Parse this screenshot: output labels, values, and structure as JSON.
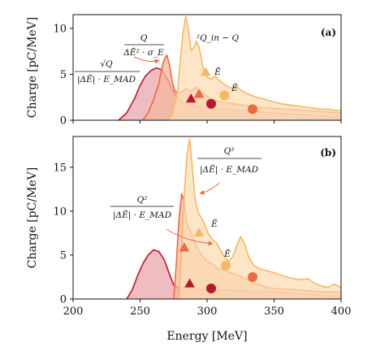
{
  "chart_data": [
    {
      "panel": "(a)",
      "type": "area",
      "ylabel": "Charge [pC/MeV]",
      "xlim": [
        200,
        400
      ],
      "ylim": [
        0,
        11.5
      ],
      "xticks": [
        200,
        250,
        300,
        350,
        400
      ],
      "yticks": [
        0,
        5,
        10
      ],
      "grid": false,
      "series": [
        {
          "color": "#b8172b",
          "fill": "#e9a5ae",
          "x": [
            234,
            240,
            246,
            250,
            254,
            258,
            262,
            266,
            270,
            274,
            278,
            282,
            286,
            290,
            295,
            300,
            305,
            310,
            320,
            330,
            340,
            350,
            360,
            370,
            380,
            390,
            400
          ],
          "y": [
            0,
            0.8,
            2.4,
            3.8,
            4.8,
            5.4,
            5.7,
            5.5,
            4.6,
            3.4,
            2.4,
            1.9,
            1.6,
            1.5,
            1.4,
            1.3,
            1.25,
            1.2,
            1.1,
            1.0,
            0.9,
            0.8,
            0.7,
            0.6,
            0.5,
            0.4,
            0.3
          ]
        },
        {
          "color": "#ea6b45",
          "fill": "#f5b79c",
          "x": [
            252,
            256,
            260,
            264,
            266,
            268,
            270,
            272,
            274,
            276,
            278,
            281,
            284,
            288,
            292,
            296,
            300,
            305,
            310,
            315,
            320,
            330,
            340,
            350,
            360,
            370,
            380,
            390,
            400
          ],
          "y": [
            0,
            0.8,
            2.2,
            4.0,
            5.5,
            6.6,
            7.1,
            6.0,
            4.2,
            3.2,
            3.0,
            3.1,
            3.4,
            3.2,
            3.6,
            3.0,
            2.6,
            2.2,
            2.0,
            1.9,
            1.8,
            1.6,
            1.4,
            1.3,
            1.2,
            1.1,
            1.0,
            0.9,
            0.8
          ]
        },
        {
          "color": "#f6b766",
          "fill": "#fcdeb6",
          "x": [
            270,
            274,
            278,
            280,
            282,
            284,
            286,
            288,
            290,
            292,
            294,
            296,
            298,
            300,
            303,
            306,
            310,
            314,
            318,
            322,
            326,
            330,
            335,
            340,
            345,
            350,
            355,
            360,
            365,
            370,
            375,
            380,
            385,
            390,
            395,
            400
          ],
          "y": [
            0,
            0.6,
            3.2,
            6.5,
            9.5,
            11.3,
            10.0,
            7.6,
            7.9,
            8.6,
            8.0,
            6.5,
            5.1,
            4.7,
            4.5,
            4.8,
            4.2,
            3.8,
            3.5,
            3.7,
            3.2,
            2.9,
            2.6,
            2.4,
            2.2,
            2.0,
            1.8,
            1.7,
            1.6,
            1.5,
            1.4,
            1.3,
            1.2,
            1.2,
            1.1,
            1.0
          ]
        }
      ],
      "markers": [
        {
          "shape": "triangle",
          "x": 288,
          "y": 2.3,
          "color": "#b8172b"
        },
        {
          "shape": "circle",
          "x": 303,
          "y": 1.8,
          "color": "#b8172b"
        },
        {
          "shape": "triangle",
          "x": 294,
          "y": 2.8,
          "color": "#ea6b45"
        },
        {
          "shape": "circle",
          "x": 334,
          "y": 1.2,
          "color": "#ea6b45"
        },
        {
          "shape": "triangle",
          "x": 299,
          "y": 5.2,
          "color": "#f6b766"
        },
        {
          "shape": "circle",
          "x": 313,
          "y": 2.7,
          "color": "#f6b766"
        }
      ],
      "annotations": [
        {
          "text": "Q",
          "x": 225,
          "y": 10.3
        },
        {
          "text": "ΔĒ² · σ_E",
          "x": 225,
          "y": 8.7
        },
        {
          "text": "√Q",
          "x": 207,
          "y": 6.1
        },
        {
          "text": "|ΔẼ| · E_MAD",
          "x": 207,
          "y": 4.5
        },
        {
          "text": "²Q_in − Q",
          "x": 330,
          "y": 9.0
        },
        {
          "text": "Ē",
          "x": 307,
          "y": 5.6
        },
        {
          "text": "Ẽ",
          "x": 322,
          "y": 3.3
        }
      ],
      "tag": "(a)"
    },
    {
      "panel": "(b)",
      "type": "area",
      "ylabel": "Charge [pC/MeV]",
      "xlabel": "Energy [MeV]",
      "xlim": [
        200,
        400
      ],
      "ylim": [
        0,
        18.5
      ],
      "xticks": [
        200,
        250,
        300,
        350,
        400
      ],
      "yticks": [
        0,
        5,
        10,
        15
      ],
      "grid": false,
      "series": [
        {
          "color": "#b8172b",
          "fill": "#e9a5ae",
          "x": [
            240,
            244,
            248,
            252,
            256,
            260,
            264,
            268,
            272,
            275,
            278,
            282,
            286,
            290,
            295,
            300,
            310,
            320,
            330,
            340,
            350,
            360,
            370,
            380,
            390,
            400
          ],
          "y": [
            0,
            1.0,
            2.6,
            4.0,
            5.0,
            5.6,
            5.4,
            4.5,
            2.8,
            1.6,
            1.3,
            1.2,
            1.2,
            1.1,
            1.1,
            1.1,
            1.0,
            1.0,
            0.9,
            0.9,
            0.8,
            0.7,
            0.6,
            0.5,
            0.4,
            0.3
          ]
        },
        {
          "color": "#ea6b45",
          "fill": "#f5b79c",
          "x": [
            275,
            277,
            279,
            281,
            283,
            285,
            288,
            292,
            296,
            300,
            304,
            308,
            312,
            316,
            320,
            325,
            330,
            335,
            340,
            345,
            350,
            360,
            370,
            380,
            390,
            400
          ],
          "y": [
            0,
            4.0,
            9.0,
            12.0,
            11.0,
            8.5,
            7.6,
            6.0,
            5.0,
            4.3,
            4.0,
            3.5,
            3.3,
            3.1,
            2.9,
            2.6,
            2.2,
            1.8,
            1.6,
            1.3,
            1.2,
            1.1,
            1.0,
            0.9,
            0.8,
            0.8
          ]
        },
        {
          "color": "#f6b766",
          "fill": "#fcdeb6",
          "x": [
            279,
            281,
            283,
            285,
            287,
            289,
            291,
            293,
            295,
            298,
            301,
            304,
            307,
            310,
            313,
            316,
            319,
            322,
            325,
            328,
            331,
            335,
            340,
            345,
            350,
            355,
            360,
            365,
            370,
            375,
            380,
            385,
            390,
            395,
            400
          ],
          "y": [
            0,
            6.0,
            12.0,
            16.5,
            18.2,
            15.0,
            11.5,
            10.0,
            9.4,
            8.6,
            7.4,
            6.8,
            6.4,
            5.6,
            4.8,
            4.3,
            4.8,
            6.0,
            7.1,
            6.3,
            4.8,
            3.8,
            3.4,
            3.2,
            3.0,
            2.7,
            2.5,
            2.3,
            2.2,
            2.3,
            1.8,
            1.5,
            1.3,
            1.7,
            1.3
          ]
        }
      ],
      "markers": [
        {
          "shape": "triangle",
          "x": 287,
          "y": 1.7,
          "color": "#b8172b"
        },
        {
          "shape": "circle",
          "x": 303,
          "y": 1.2,
          "color": "#b8172b"
        },
        {
          "shape": "triangle",
          "x": 283,
          "y": 5.8,
          "color": "#ea6b45"
        },
        {
          "shape": "circle",
          "x": 334,
          "y": 2.5,
          "color": "#ea6b45"
        },
        {
          "shape": "triangle",
          "x": 294,
          "y": 7.5,
          "color": "#f6b766"
        },
        {
          "shape": "circle",
          "x": 314,
          "y": 3.8,
          "color": "#f6b766"
        }
      ],
      "annotations": [
        {
          "text": "Q²",
          "x": 253,
          "y": 10.6
        },
        {
          "text": "|ΔẼ| · E_MAD",
          "x": 253,
          "y": 8.8
        },
        {
          "text": "Q³",
          "x": 334,
          "y": 16.4
        },
        {
          "text": "|ΔẼ| · E_MAD",
          "x": 334,
          "y": 14.6
        },
        {
          "text": "Ẽ",
          "x": 309,
          "y": 8.3
        },
        {
          "text": "Ē",
          "x": 317,
          "y": 5.5
        }
      ],
      "tag": "(b)"
    }
  ]
}
